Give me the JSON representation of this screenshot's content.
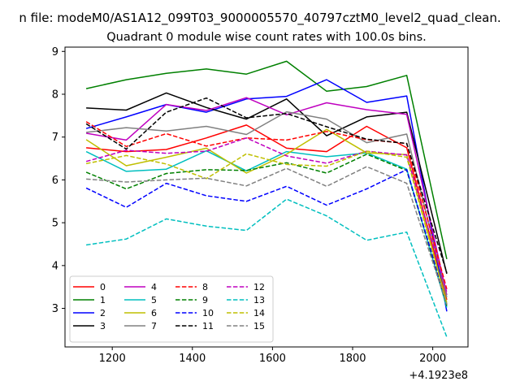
{
  "figure": {
    "suptitle": "n file: modeM0/AS1A12_099T03_9000005570_40797cztM0_level2_quad_clean.",
    "offset_label": "+4.1923e8"
  },
  "chart_data": {
    "type": "line",
    "title": "Quadrant 0 module wise count rates with 100.0s bins.",
    "xlabel": "",
    "ylabel": "",
    "x_offset": 419230000,
    "x": [
      1135,
      1235,
      1335,
      1435,
      1535,
      1635,
      1735,
      1835,
      1935,
      2035
    ],
    "xlim": [
      1082,
      2088
    ],
    "ylim": [
      2.1,
      9.1
    ],
    "xticks": [
      1200,
      1400,
      1600,
      1800,
      2000
    ],
    "xtick_labels": [
      "1200",
      "1400",
      "1600",
      "1800",
      "2000"
    ],
    "yticks": [
      3,
      4,
      5,
      6,
      7,
      8,
      9
    ],
    "ytick_labels": [
      "3",
      "4",
      "5",
      "6",
      "7",
      "8",
      "9"
    ],
    "grid": false,
    "legend": {
      "location": "lower left",
      "columns": 4
    },
    "series": [
      {
        "name": "0",
        "color": "#ff0000",
        "style": "solid",
        "values": [
          6.75,
          6.66,
          6.71,
          6.98,
          7.28,
          6.74,
          6.66,
          7.25,
          6.75,
          3.2
        ]
      },
      {
        "name": "1",
        "color": "#008000",
        "style": "solid",
        "values": [
          8.13,
          8.34,
          8.49,
          8.59,
          8.47,
          8.77,
          8.07,
          8.18,
          8.44,
          4.15
        ]
      },
      {
        "name": "2",
        "color": "#0000ff",
        "style": "solid",
        "values": [
          7.2,
          7.47,
          7.76,
          7.58,
          7.89,
          7.95,
          8.34,
          7.81,
          7.96,
          2.93
        ]
      },
      {
        "name": "3",
        "color": "#000000",
        "style": "solid",
        "values": [
          7.68,
          7.63,
          8.03,
          7.69,
          7.42,
          7.89,
          7.03,
          7.47,
          7.58,
          3.81
        ]
      },
      {
        "name": "4",
        "color": "#bf00bf",
        "style": "solid",
        "values": [
          7.09,
          6.93,
          7.76,
          7.62,
          7.92,
          7.52,
          7.8,
          7.64,
          7.53,
          3.31
        ]
      },
      {
        "name": "5",
        "color": "#00bfbf",
        "style": "solid",
        "values": [
          6.66,
          6.2,
          6.25,
          6.68,
          6.21,
          6.66,
          6.54,
          6.63,
          6.25,
          3.02
        ]
      },
      {
        "name": "6",
        "color": "#bfbf00",
        "style": "solid",
        "values": [
          6.94,
          6.33,
          6.53,
          6.74,
          6.16,
          6.6,
          7.18,
          6.63,
          6.59,
          3.13
        ]
      },
      {
        "name": "7",
        "color": "#808080",
        "style": "solid",
        "values": [
          7.11,
          7.22,
          7.14,
          7.25,
          7.06,
          7.59,
          7.42,
          6.87,
          7.07,
          3.26
        ]
      },
      {
        "name": "8",
        "color": "#ff0000",
        "style": "dashed",
        "values": [
          7.36,
          6.78,
          7.08,
          6.79,
          6.98,
          6.93,
          7.13,
          6.94,
          6.85,
          3.45
        ]
      },
      {
        "name": "9",
        "color": "#008000",
        "style": "dashed",
        "values": [
          6.18,
          5.79,
          6.15,
          6.24,
          6.22,
          6.4,
          6.16,
          6.6,
          6.22,
          3.06
        ]
      },
      {
        "name": "10",
        "color": "#0000ff",
        "style": "dashed",
        "values": [
          5.81,
          5.36,
          5.92,
          5.63,
          5.5,
          5.85,
          5.41,
          5.79,
          6.24,
          3.11
        ]
      },
      {
        "name": "11",
        "color": "#000000",
        "style": "dashed",
        "values": [
          7.31,
          6.72,
          7.58,
          7.91,
          7.45,
          7.55,
          7.24,
          6.95,
          6.85,
          3.83
        ]
      },
      {
        "name": "12",
        "color": "#bf00bf",
        "style": "dashed",
        "values": [
          6.43,
          6.69,
          6.62,
          6.67,
          6.98,
          6.56,
          6.39,
          6.67,
          6.58,
          3.38
        ]
      },
      {
        "name": "13",
        "color": "#00bfbf",
        "style": "dashed",
        "values": [
          4.48,
          4.62,
          5.09,
          4.92,
          4.82,
          5.55,
          5.16,
          4.59,
          4.78,
          2.33
        ]
      },
      {
        "name": "14",
        "color": "#bfbf00",
        "style": "dashed",
        "values": [
          6.38,
          6.57,
          6.37,
          6.03,
          6.61,
          6.36,
          6.32,
          6.67,
          6.53,
          3.11
        ]
      },
      {
        "name": "15",
        "color": "#808080",
        "style": "dashed",
        "values": [
          6.02,
          5.95,
          6.0,
          6.04,
          5.86,
          6.27,
          5.85,
          6.31,
          5.92,
          3.09
        ]
      }
    ]
  }
}
